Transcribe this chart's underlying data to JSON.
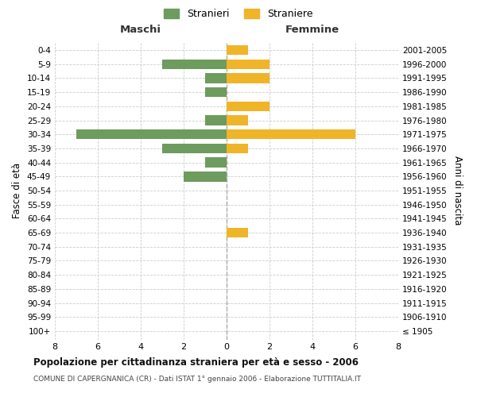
{
  "age_groups": [
    "100+",
    "95-99",
    "90-94",
    "85-89",
    "80-84",
    "75-79",
    "70-74",
    "65-69",
    "60-64",
    "55-59",
    "50-54",
    "45-49",
    "40-44",
    "35-39",
    "30-34",
    "25-29",
    "20-24",
    "15-19",
    "10-14",
    "5-9",
    "0-4"
  ],
  "birth_years": [
    "≤ 1905",
    "1906-1910",
    "1911-1915",
    "1916-1920",
    "1921-1925",
    "1926-1930",
    "1931-1935",
    "1936-1940",
    "1941-1945",
    "1946-1950",
    "1951-1955",
    "1956-1960",
    "1961-1965",
    "1966-1970",
    "1971-1975",
    "1976-1980",
    "1981-1985",
    "1986-1990",
    "1991-1995",
    "1996-2000",
    "2001-2005"
  ],
  "maschi": [
    0,
    0,
    0,
    0,
    0,
    0,
    0,
    0,
    0,
    0,
    0,
    2,
    1,
    3,
    7,
    1,
    0,
    1,
    1,
    3,
    0
  ],
  "femmine": [
    0,
    0,
    0,
    0,
    0,
    0,
    0,
    1,
    0,
    0,
    0,
    0,
    0,
    1,
    6,
    1,
    2,
    0,
    2,
    2,
    1
  ],
  "maschi_color": "#6e9b5e",
  "femmine_color": "#f0b429",
  "title": "Popolazione per cittadinanza straniera per età e sesso - 2006",
  "subtitle": "COMUNE DI CAPERGNANICA (CR) - Dati ISTAT 1° gennaio 2006 - Elaborazione TUTTITALIA.IT",
  "ylabel_left": "Fasce di età",
  "ylabel_right": "Anni di nascita",
  "label_maschi": "Maschi",
  "label_femmine": "Femmine",
  "legend_maschi": "Stranieri",
  "legend_femmine": "Straniere",
  "xlim": 8,
  "grid_color": "#cccccc",
  "bg_color": "#ffffff",
  "bar_height": 0.7
}
